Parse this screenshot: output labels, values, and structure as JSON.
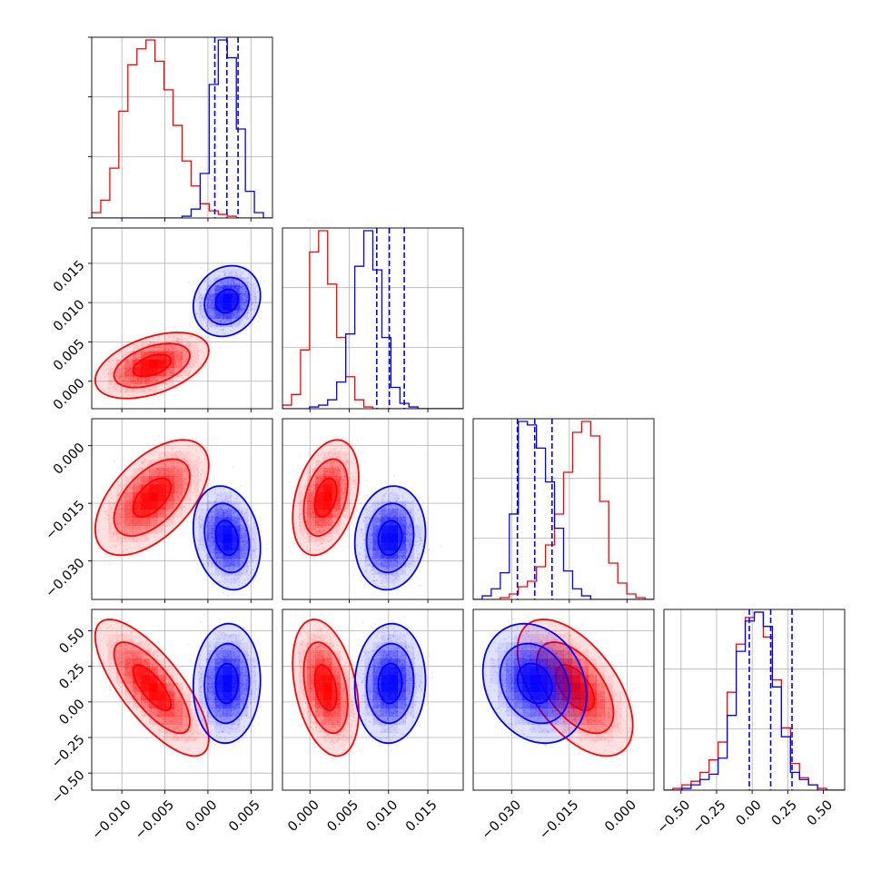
{
  "colors": {
    "red": "#ff0000",
    "blue": "#0000ff",
    "grid": "#b0b0b0",
    "axis": "#000000",
    "background": "#ffffff"
  },
  "chart_data": {
    "type": "corner",
    "title": "",
    "parameters": [
      {
        "range": [
          -0.0135,
          0.0075
        ],
        "ticks": [
          -0.01,
          -0.005,
          0.0,
          0.005
        ],
        "tick_labels": [
          "−0.010",
          "−0.005",
          "0.000",
          "0.005"
        ]
      },
      {
        "range": [
          -0.0035,
          0.0195
        ],
        "ticks": [
          0.0,
          0.005,
          0.01,
          0.015
        ],
        "tick_labels": [
          "0.000",
          "0.005",
          "0.010",
          "0.015"
        ]
      },
      {
        "range": [
          -0.04,
          0.007
        ],
        "ticks": [
          -0.03,
          -0.015,
          0.0
        ],
        "tick_labels": [
          "−0.030",
          "−0.015",
          "0.000"
        ]
      },
      {
        "range": [
          -0.62,
          0.65
        ],
        "ticks": [
          -0.5,
          -0.25,
          0.0,
          0.25,
          0.5
        ],
        "tick_labels": [
          "−0.50",
          "−0.25",
          "0.00",
          "0.25",
          "0.50"
        ]
      }
    ],
    "series": [
      {
        "color": "red",
        "means": [
          -0.0065,
          0.002,
          -0.0135,
          0.1
        ],
        "sds": [
          0.0022,
          0.0014,
          0.005,
          0.16
        ],
        "corr": [
          [
            1,
            0.45,
            0.55,
            -0.75
          ],
          [
            0.45,
            1,
            0.35,
            -0.35
          ],
          [
            0.55,
            0.35,
            1,
            -0.55
          ],
          [
            -0.75,
            -0.35,
            -0.55,
            1
          ]
        ],
        "histograms": [
          {
            "edges": [
              -0.0135,
              0.0075
            ],
            "counts": [
              3,
              10,
              28,
              60,
              86,
              95,
              100,
              88,
              72,
              52,
              32,
              18,
              8,
              4,
              2,
              1,
              0,
              0,
              0,
              0
            ]
          },
          {
            "edges": [
              -0.0035,
              0.0195
            ],
            "counts": [
              2,
              8,
              33,
              88,
              100,
              70,
              40,
              18,
              5,
              1,
              0,
              0,
              0,
              0,
              0,
              0,
              0,
              0,
              0,
              0
            ]
          },
          {
            "edges": [
              -0.04,
              0.007
            ],
            "counts": [
              0,
              0,
              0,
              1,
              3,
              7,
              10,
              18,
              30,
              47,
              70,
              92,
              98,
              90,
              54,
              20,
              9,
              3,
              1,
              0
            ]
          },
          {
            "edges": [
              -0.62,
              0.65
            ],
            "counts": [
              0,
              1,
              3,
              5,
              10,
              17,
              27,
              55,
              82,
              97,
              100,
              86,
              62,
              35,
              15,
              7,
              3,
              1,
              0,
              0
            ]
          }
        ],
        "quantiles": []
      },
      {
        "color": "blue",
        "means": [
          0.0022,
          0.0102,
          -0.024,
          0.13
        ],
        "sds": [
          0.0013,
          0.0015,
          0.0045,
          0.14
        ],
        "corr": [
          [
            1,
            0.15,
            -0.2,
            0.05
          ],
          [
            0.15,
            1,
            0.1,
            0.05
          ],
          [
            -0.2,
            0.1,
            1,
            -0.2
          ],
          [
            0.05,
            0.05,
            -0.2,
            1
          ]
        ],
        "histograms": [
          {
            "edges": [
              -0.0135,
              0.0075
            ],
            "counts": [
              0,
              0,
              0,
              0,
              0,
              0,
              0,
              0,
              0,
              0,
              1,
              5,
              25,
              75,
              100,
              90,
              50,
              15,
              3,
              0
            ]
          },
          {
            "edges": [
              -0.0035,
              0.0195
            ],
            "counts": [
              0,
              0,
              0,
              1,
              2,
              5,
              15,
              42,
              80,
              100,
              78,
              40,
              12,
              3,
              1,
              0,
              0,
              0,
              0,
              0
            ]
          },
          {
            "edges": [
              -0.04,
              0.007
            ],
            "counts": [
              0,
              2,
              6,
              15,
              48,
              100,
              98,
              85,
              66,
              40,
              16,
              6,
              2,
              0,
              0,
              0,
              0,
              0,
              0,
              0
            ]
          },
          {
            "edges": [
              -0.62,
              0.65
            ],
            "counts": [
              0,
              0,
              1,
              3,
              6,
              9,
              18,
              42,
              78,
              95,
              100,
              92,
              58,
              30,
              10,
              6,
              3,
              0,
              0,
              0
            ]
          }
        ],
        "quantiles": [
          [
            0.0008,
            0.0022,
            0.0035
          ],
          [
            0.0085,
            0.0101,
            0.012
          ],
          [
            -0.0285,
            -0.024,
            -0.0195
          ],
          [
            -0.02,
            0.13,
            0.28
          ]
        ]
      }
    ],
    "grid": true,
    "legend": "none",
    "xlabel": "",
    "ylabel": ""
  }
}
